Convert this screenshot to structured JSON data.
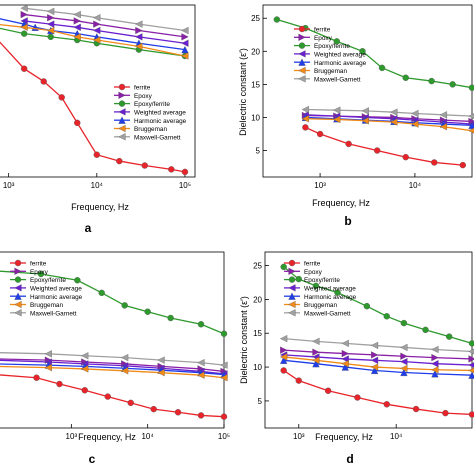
{
  "colors": {
    "ferrite": "#e8242a",
    "epoxy": "#8a1fa8",
    "epoxy_ferrite": "#2e9a2e",
    "weighted": "#6a1fd0",
    "harmonic": "#1f3de8",
    "bruggeman": "#f08a18",
    "maxwell": "#a0a0a0",
    "axis": "#000000"
  },
  "panels": [
    {
      "id": "a",
      "caption": "a",
      "xlabel": "Frequency, Hz",
      "ylabel": "",
      "xticks": [
        "10³",
        "10⁴",
        "10⁵"
      ],
      "xtick_vals": [
        1000,
        10000,
        100000
      ],
      "yticks": [],
      "ytick_vals": [],
      "legend": [
        "ferrite",
        "Epoxy",
        "Epoxy/ferrite",
        "Weighted average",
        "Harmonic average",
        "Bruggeman",
        "Maxwell-Garnett"
      ]
    },
    {
      "id": "b",
      "caption": "b",
      "xlabel": "Frequency, Hz",
      "ylabel": "Dielectric constant (ε′)",
      "xticks": [
        "10³",
        "10⁴"
      ],
      "xtick_vals": [
        1000,
        10000
      ],
      "yticks": [
        "5",
        "10",
        "15",
        "20",
        "25"
      ],
      "ytick_vals": [
        5,
        10,
        15,
        20,
        25
      ],
      "legend": [
        "ferrite",
        "Epoxy",
        "Epoxy/ferrite",
        "Weighted average",
        "Harmonic average",
        "Bruggeman",
        "Maxwell-Garnett"
      ]
    },
    {
      "id": "c",
      "caption": "c",
      "xlabel": "Frequency, Hz",
      "ylabel": "",
      "xticks": [
        "10³",
        "10⁴",
        "10⁵"
      ],
      "xtick_vals": [
        1000,
        10000,
        100000
      ],
      "yticks": [],
      "ytick_vals": [],
      "legend": [
        "ferrite",
        "Epoxy",
        "Epoxy/ferrite",
        "Weighted average",
        "Harmonic average",
        "Bruggeman",
        "Maxwell-Garnett"
      ]
    },
    {
      "id": "d",
      "caption": "d",
      "xlabel": "Frequency, Hz",
      "ylabel": "Dielectric constant (ε′)",
      "xticks": [
        "10³",
        "10⁴"
      ],
      "xtick_vals": [
        1000,
        10000
      ],
      "yticks": [
        "5",
        "10",
        "15",
        "20",
        "25"
      ],
      "ytick_vals": [
        5,
        10,
        15,
        20,
        25
      ],
      "legend": [
        "ferrite",
        "Epoxy",
        "Epoxy/ferrite",
        "Weighted average",
        "Harmonic average",
        "Bruggeman",
        "Maxwell-Garnett"
      ]
    }
  ],
  "chart_data": [
    {
      "panel": "a",
      "type": "line",
      "xlabel": "Frequency, Hz",
      "x_scale": "log",
      "xlim": [
        700,
        130000
      ],
      "ylim": [
        0,
        27
      ],
      "series": [
        {
          "name": "ferrite",
          "x": [
            700,
            1500,
            2500,
            4000,
            6000,
            10000,
            18000,
            35000,
            70000,
            100000
          ],
          "y": [
            22,
            17,
            15,
            12.5,
            8.5,
            3.5,
            2.5,
            1.8,
            1.2,
            0.8
          ]
        },
        {
          "name": "Epoxy",
          "x": [
            1500,
            3000,
            6000,
            10000,
            30000,
            100000
          ],
          "y": [
            25.5,
            25,
            24.5,
            24,
            23,
            22
          ]
        },
        {
          "name": "Epoxy/ferrite",
          "x": [
            700,
            1500,
            3000,
            6000,
            10000,
            30000,
            100000
          ],
          "y": [
            23.5,
            22.5,
            22,
            21.5,
            21,
            20,
            19
          ]
        },
        {
          "name": "Weighted average",
          "x": [
            1500,
            3000,
            6000,
            10000,
            30000,
            100000
          ],
          "y": [
            24.5,
            24,
            23.5,
            23,
            22,
            21
          ]
        },
        {
          "name": "Harmonic average",
          "x": [
            700,
            1500,
            2000,
            3000,
            6000,
            10000,
            30000,
            100000
          ],
          "y": [
            25,
            24,
            23.5,
            23,
            22.5,
            22,
            21,
            20
          ]
        },
        {
          "name": "Bruggeman",
          "x": [
            700,
            1500,
            3000,
            6000,
            10000,
            30000,
            100000
          ],
          "y": [
            24,
            23.5,
            23,
            22,
            21.5,
            20.5,
            19
          ]
        },
        {
          "name": "Maxwell-Garnett",
          "x": [
            1500,
            3000,
            6000,
            10000,
            30000,
            100000
          ],
          "y": [
            26.5,
            26,
            25.5,
            25,
            24,
            23
          ]
        }
      ]
    },
    {
      "panel": "b",
      "type": "line",
      "xlabel": "Frequency, Hz",
      "ylabel": "Dielectric constant (ε′)",
      "x_scale": "log",
      "xlim": [
        250,
        40000
      ],
      "ylim": [
        1,
        27
      ],
      "series": [
        {
          "name": "ferrite",
          "x": [
            700,
            1000,
            2000,
            4000,
            8000,
            16000,
            32000
          ],
          "y": [
            8.5,
            7.5,
            6,
            5,
            4,
            3.2,
            2.8
          ]
        },
        {
          "name": "Epoxy",
          "x": [
            700,
            1500,
            3000,
            6000,
            10000,
            20000,
            40000
          ],
          "y": [
            10.3,
            10.2,
            10.1,
            10,
            9.8,
            9.6,
            9.4
          ]
        },
        {
          "name": "Epoxy/ferrite",
          "x": [
            350,
            700,
            1500,
            2800,
            4500,
            8000,
            15000,
            25000,
            40000
          ],
          "y": [
            24.8,
            23.5,
            21.5,
            20,
            17.5,
            16,
            15.5,
            15,
            14.5
          ]
        },
        {
          "name": "Weighted average",
          "x": [
            700,
            1500,
            3000,
            6000,
            10000,
            20000,
            40000
          ],
          "y": [
            10.4,
            10.2,
            10,
            9.8,
            9.6,
            9.3,
            9
          ]
        },
        {
          "name": "Harmonic average",
          "x": [
            700,
            1500,
            3000,
            6000,
            10000,
            20000,
            40000
          ],
          "y": [
            10,
            9.8,
            9.6,
            9.4,
            9.2,
            9,
            8.8
          ]
        },
        {
          "name": "Bruggeman",
          "x": [
            700,
            1500,
            3000,
            6000,
            10000,
            20000,
            40000
          ],
          "y": [
            9.8,
            9.7,
            9.5,
            9.3,
            9,
            8.6,
            8
          ]
        },
        {
          "name": "Maxwell-Garnett",
          "x": [
            700,
            1500,
            3000,
            6000,
            10000,
            20000,
            40000
          ],
          "y": [
            11.2,
            11.1,
            11,
            10.8,
            10.6,
            10.4,
            10.2
          ]
        }
      ]
    },
    {
      "panel": "c",
      "type": "line",
      "xlabel": "Frequency, Hz",
      "x_scale": "log",
      "xlim": [
        100,
        100000
      ],
      "ylim": [
        0,
        28
      ],
      "series": [
        {
          "name": "ferrite",
          "x": [
            100,
            350,
            700,
            1500,
            3000,
            6000,
            12000,
            25000,
            50000,
            100000
          ],
          "y": [
            8.5,
            8,
            7,
            6,
            5,
            4,
            3,
            2.5,
            2,
            1.8
          ]
        },
        {
          "name": "Epoxy",
          "x": [
            100,
            500,
            1500,
            5000,
            15000,
            50000,
            100000
          ],
          "y": [
            11,
            10.8,
            10.5,
            10.2,
            9.8,
            9.4,
            9
          ]
        },
        {
          "name": "Epoxy/ferrite",
          "x": [
            100,
            400,
            1200,
            2500,
            5000,
            10000,
            20000,
            50000,
            100000
          ],
          "y": [
            25,
            24.5,
            23.5,
            21.5,
            19.5,
            18.5,
            17.5,
            16.5,
            15
          ]
        },
        {
          "name": "Weighted average",
          "x": [
            100,
            500,
            1500,
            5000,
            15000,
            50000,
            100000
          ],
          "y": [
            10.8,
            10.5,
            10.2,
            9.9,
            9.5,
            9,
            8.6
          ]
        },
        {
          "name": "Harmonic average",
          "x": [
            100,
            500,
            1500,
            5000,
            15000,
            50000,
            100000
          ],
          "y": [
            10.2,
            10,
            9.8,
            9.5,
            9.2,
            8.8,
            8.5
          ]
        },
        {
          "name": "Bruggeman",
          "x": [
            100,
            500,
            1500,
            5000,
            15000,
            50000,
            100000
          ],
          "y": [
            9.8,
            9.6,
            9.4,
            9.1,
            8.8,
            8.4,
            8
          ]
        },
        {
          "name": "Maxwell-Garnett",
          "x": [
            100,
            500,
            1500,
            5000,
            15000,
            50000,
            100000
          ],
          "y": [
            12,
            11.8,
            11.5,
            11.2,
            10.8,
            10.4,
            10
          ]
        }
      ]
    },
    {
      "panel": "d",
      "type": "line",
      "xlabel": "Frequency, Hz",
      "ylabel": "Dielectric constant (ε′)",
      "x_scale": "log",
      "xlim": [
        450,
        60000
      ],
      "ylim": [
        1,
        27
      ],
      "series": [
        {
          "name": "ferrite",
          "x": [
            700,
            1000,
            2000,
            4000,
            8000,
            16000,
            32000,
            60000
          ],
          "y": [
            9.5,
            8,
            6.5,
            5.5,
            4.5,
            3.8,
            3.2,
            3
          ]
        },
        {
          "name": "Epoxy",
          "x": [
            700,
            1500,
            3000,
            6000,
            12000,
            25000,
            60000
          ],
          "y": [
            12.5,
            12.2,
            12,
            11.8,
            11.6,
            11.4,
            11.2
          ]
        },
        {
          "name": "Epoxy/ferrite",
          "x": [
            700,
            1000,
            1500,
            2500,
            5000,
            8000,
            12000,
            20000,
            35000,
            60000
          ],
          "y": [
            24.8,
            23,
            22,
            21,
            19,
            17.5,
            16.5,
            15.5,
            14.5,
            13.5
          ]
        },
        {
          "name": "Weighted average",
          "x": [
            700,
            1500,
            3000,
            6000,
            12000,
            25000,
            60000
          ],
          "y": [
            11.8,
            11.5,
            11.2,
            11,
            10.8,
            10.5,
            10.3
          ]
        },
        {
          "name": "Harmonic average",
          "x": [
            700,
            1500,
            3000,
            6000,
            12000,
            25000,
            60000
          ],
          "y": [
            11,
            10.5,
            10,
            9.5,
            9.2,
            9,
            8.8
          ]
        },
        {
          "name": "Bruggeman",
          "x": [
            700,
            1500,
            3000,
            6000,
            12000,
            25000,
            60000
          ],
          "y": [
            11.5,
            11,
            10.5,
            10,
            9.8,
            9.6,
            9.5
          ]
        },
        {
          "name": "Maxwell-Garnett",
          "x": [
            700,
            1500,
            3000,
            6000,
            12000,
            25000,
            60000
          ],
          "y": [
            14.2,
            13.8,
            13.5,
            13.2,
            12.9,
            12.6,
            12.3
          ]
        }
      ]
    }
  ]
}
